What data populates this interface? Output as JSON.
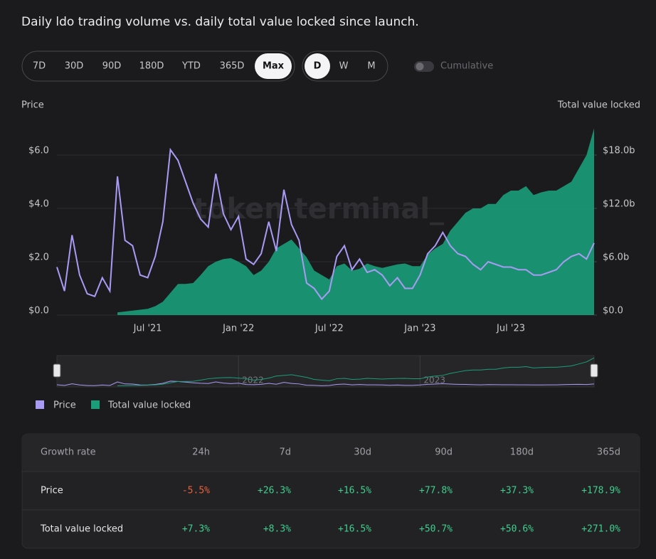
{
  "chart_data": {
    "type": "line-area",
    "title": "Daily ldo trading volume vs. daily total value locked since launch.",
    "ylabel": "Price",
    "y2label": "Total value locked",
    "watermark": "token terminal_",
    "categories": [
      null,
      null,
      null,
      null,
      null,
      null,
      null,
      null,
      null,
      null,
      null,
      null,
      "Jul '21",
      null,
      null,
      null,
      null,
      null,
      null,
      null,
      null,
      null,
      null,
      null,
      "Jan '22",
      null,
      null,
      null,
      null,
      null,
      null,
      null,
      null,
      null,
      null,
      null,
      "Jul '22",
      null,
      null,
      null,
      null,
      null,
      null,
      null,
      null,
      null,
      null,
      null,
      "Jan '23",
      null,
      null,
      null,
      null,
      null,
      null,
      null,
      null,
      null,
      null,
      null,
      "Jul '23",
      null,
      null,
      null,
      null,
      null,
      null,
      null,
      null,
      null,
      null,
      null
    ],
    "series": [
      {
        "name": "Price",
        "color": "#a99bf5",
        "values": [
          1.8,
          0.9,
          3.0,
          1.5,
          0.8,
          0.7,
          1.4,
          0.9,
          5.2,
          2.8,
          2.6,
          1.5,
          1.4,
          2.2,
          3.5,
          6.2,
          5.8,
          5.0,
          4.2,
          3.6,
          3.3,
          5.3,
          3.8,
          3.2,
          3.7,
          2.1,
          1.9,
          2.3,
          3.5,
          2.4,
          4.7,
          3.4,
          2.8,
          1.2,
          1.0,
          0.6,
          0.9,
          2.2,
          2.6,
          1.7,
          2.1,
          1.6,
          1.7,
          1.5,
          1.1,
          1.4,
          1.0,
          1.0,
          1.5,
          2.3,
          2.6,
          3.1,
          2.6,
          2.3,
          2.2,
          1.9,
          1.7,
          2.0,
          1.9,
          1.8,
          1.8,
          1.7,
          1.7,
          1.5,
          1.5,
          1.6,
          1.7,
          2.0,
          2.2,
          2.3,
          2.1,
          2.7
        ]
      },
      {
        "name": "Total value locked",
        "color": "#1a9e7a",
        "axis": "y2",
        "values": [
          null,
          null,
          null,
          null,
          null,
          null,
          null,
          null,
          0.3,
          0.4,
          0.5,
          0.6,
          0.7,
          1.0,
          1.5,
          2.5,
          3.5,
          3.5,
          3.6,
          4.5,
          5.5,
          6.0,
          6.3,
          6.4,
          6.0,
          5.5,
          4.5,
          5.0,
          6.0,
          7.5,
          8.0,
          8.5,
          7.5,
          6.5,
          5.0,
          4.5,
          4.0,
          5.5,
          5.8,
          5.0,
          5.2,
          5.8,
          5.5,
          5.3,
          5.5,
          5.7,
          5.8,
          5.5,
          5.5,
          6.8,
          7.5,
          8.0,
          9.5,
          10.5,
          11.5,
          12.0,
          12.0,
          12.5,
          12.5,
          13.5,
          14.0,
          14.0,
          14.5,
          13.5,
          13.8,
          14.0,
          14.0,
          14.5,
          15.0,
          16.5,
          18.0,
          21.0
        ]
      }
    ],
    "ylim": [
      0,
      7.2
    ],
    "yticks": [
      {
        "value": 0,
        "label": "$0.0"
      },
      {
        "value": 2,
        "label": "$2.0"
      },
      {
        "value": 4,
        "label": "$4.0"
      },
      {
        "value": 6,
        "label": "$6.0"
      }
    ],
    "y2lim": [
      0,
      21.6
    ],
    "y2ticks": [
      {
        "value": 0,
        "label": "$0.0"
      },
      {
        "value": 6,
        "label": "$6.0b"
      },
      {
        "value": 12,
        "label": "$12.0b"
      },
      {
        "value": 18,
        "label": "$18.0b"
      }
    ],
    "grid": true,
    "navigator": {
      "labels": [
        {
          "index": 24,
          "label": "2022"
        },
        {
          "index": 48,
          "label": "2023"
        }
      ]
    }
  },
  "controls": {
    "ranges": [
      "7D",
      "30D",
      "90D",
      "180D",
      "YTD",
      "365D",
      "Max"
    ],
    "selected_range": "Max",
    "granularity": [
      "D",
      "W",
      "M"
    ],
    "selected_granularity": "D",
    "toggle": "Cumulative"
  },
  "table": {
    "header": [
      "Growth rate",
      "24h",
      "7d",
      "30d",
      "90d",
      "180d",
      "365d"
    ],
    "rows": [
      [
        "Price",
        "-5.5%",
        "+26.3%",
        "+16.5%",
        "+77.8%",
        "+37.3%",
        "+178.9%"
      ],
      [
        "Total value locked",
        "+7.3%",
        "+8.3%",
        "+16.5%",
        "+50.7%",
        "+50.6%",
        "+271.0%"
      ]
    ]
  }
}
